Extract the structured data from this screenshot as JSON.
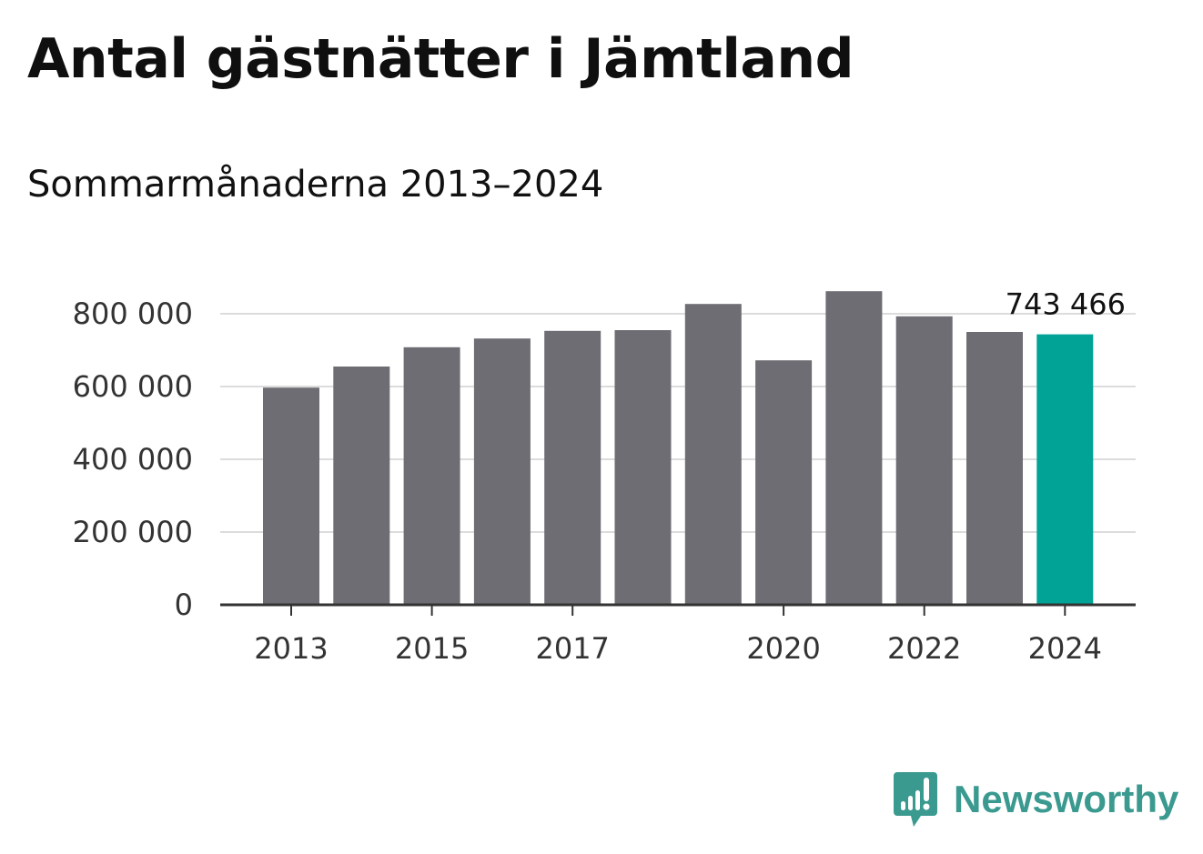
{
  "colors": {
    "bar": "#6e6d73",
    "highlight": "#00a396",
    "grid": "#dcdcdc",
    "axis": "#333333",
    "brand": "#3b9a90"
  },
  "brand": {
    "name": "Newsworthy",
    "icon": "newsworthy-logo-icon"
  },
  "chart_data": {
    "type": "bar",
    "title": "Antal gästnätter i Jämtland",
    "subtitle": "Sommarmånaderna 2013–2024",
    "xlabel": "",
    "ylabel": "",
    "categories": [
      "2013",
      "2014",
      "2015",
      "2016",
      "2017",
      "2018",
      "2019",
      "2020",
      "2021",
      "2022",
      "2023",
      "2024"
    ],
    "values": [
      597000,
      655000,
      708000,
      732000,
      753000,
      755000,
      827000,
      672000,
      862000,
      793000,
      750000,
      743466
    ],
    "highlight_category": "2024",
    "data_labels": [
      {
        "category": "2024",
        "text": "743 466"
      }
    ],
    "x_tick_labels": [
      "2013",
      "2015",
      "2017",
      "2020",
      "2022",
      "2024"
    ],
    "y_ticks": [
      0,
      200000,
      400000,
      600000,
      800000
    ],
    "y_tick_labels": [
      "0",
      "200 000",
      "400 000",
      "600 000",
      "800 000"
    ],
    "ylim": [
      0,
      900000
    ],
    "grid": true,
    "legend": "none"
  }
}
